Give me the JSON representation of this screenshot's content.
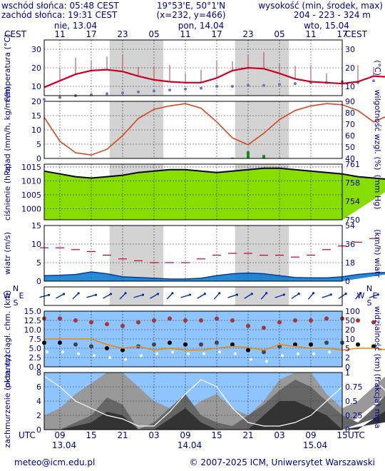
{
  "header": {
    "sunrise": "wschód słońca: 05:48 CEST",
    "sunset": "zachód słońca: 19:31 CEST",
    "coords": "19°53'E, 50°1'N",
    "grid": "(x=232, y=466)",
    "elev_title": "wysokość (min, środek, max)",
    "elev_values": "204 - 223 - 324 m"
  },
  "timeline": {
    "top_zone": "CEST",
    "bottom_zone": "UTC",
    "day_labels": [
      {
        "label": "nie, 13.04",
        "hour": 0
      },
      {
        "label": "pon, 14.04",
        "hour": 24
      },
      {
        "label": "wto, 15.04",
        "hour": 48
      }
    ],
    "top_ticks": [
      "11",
      "17",
      "23",
      "05",
      "11",
      "17",
      "23",
      "05",
      "11",
      "17"
    ],
    "bottom_ticks": [
      "09",
      "15",
      "21",
      "03",
      "09",
      "15",
      "21",
      "03",
      "09",
      "15"
    ],
    "bottom_dates": [
      "13.04",
      "14.04",
      "15.04"
    ],
    "night_bands_utc_h": [
      [
        18.5,
        28.8
      ],
      [
        42.5,
        52.8
      ]
    ]
  },
  "footer": {
    "email": "meteo@icm.edu.pl",
    "copyright": "© 2007-2025 ICM, Uniwersytet Warszawski"
  },
  "chart_data": [
    {
      "type": "line",
      "name": "temperature",
      "ylabel": "temperatura (°C)",
      "ylabel_right": "(°C)",
      "yticks": [
        "10",
        "20",
        "30"
      ],
      "ylim": [
        5,
        35
      ],
      "x_start_utc": "2025-04-13T06:00",
      "x_step_h": 3,
      "series": [
        {
          "values": [
            9.5,
            13,
            16.5,
            18.5,
            19,
            18,
            15.5,
            13.5,
            12.5,
            12,
            12,
            14.5,
            18.5,
            20,
            19.5,
            17,
            14,
            12.5,
            12,
            11.5,
            12.5,
            15.5,
            15,
            14.5
          ]
        },
        {
          "values": [
            1,
            2,
            3,
            3.5,
            4,
            4.5,
            5,
            5.5,
            6,
            6.5,
            7,
            8,
            8,
            8.5,
            8.5,
            9,
            9.5,
            10,
            10,
            10.5,
            10,
            11,
            11.5,
            12
          ]
        }
      ]
    },
    {
      "type": "line",
      "name": "precipitation-humidity",
      "ylabel": "opad (mm/h, kg/m²/h)",
      "ylabel_right": "wilgotność wzgl. (%)",
      "yticks": [
        "0",
        "5",
        "10",
        "15",
        "20"
      ],
      "yticks_right": [
        "40",
        "50",
        "60",
        "70",
        "80",
        "90"
      ],
      "ylim": [
        0,
        20
      ],
      "ylim_right": [
        40,
        90
      ],
      "x_start_utc": "2025-04-13T06:00",
      "x_step_h": 3,
      "series": [
        {
          "values": [
            76,
            55,
            45,
            43,
            48,
            60,
            75,
            83,
            86,
            88,
            84,
            72,
            58,
            52,
            62,
            74,
            82,
            86,
            88,
            87,
            82,
            72,
            78,
            88
          ]
        },
        {
          "values": [
            0,
            0,
            0,
            0,
            0,
            0,
            0,
            0,
            0,
            0,
            0,
            0,
            0.3,
            2.5,
            1.2,
            0.2,
            0,
            0,
            0,
            0,
            0,
            0,
            0.6,
            0.3
          ]
        }
      ]
    },
    {
      "type": "area",
      "name": "pressure",
      "ylabel": "ciśnienie (hPa)",
      "ylabel_right": "(mm Hg)",
      "yticks": [
        "1000",
        "1005",
        "1010",
        "1015"
      ],
      "yticks_right": [
        "750",
        "754",
        "758",
        "761"
      ],
      "ylim": [
        996,
        1016
      ],
      "x_start_utc": "2025-04-13T06:00",
      "x_step_h": 3,
      "values": [
        1013.5,
        1012.5,
        1011.5,
        1011,
        1011.5,
        1012,
        1013,
        1013.5,
        1014,
        1014,
        1013.5,
        1013,
        1013.5,
        1014,
        1014.5,
        1014.5,
        1014,
        1013.5,
        1013,
        1012.5,
        1011.5,
        1011,
        1010.5,
        1010.5
      ]
    },
    {
      "type": "area",
      "name": "wind",
      "ylabel": "wiatr (m/s)",
      "ylabel_right": "(km/h) wiatr",
      "yticks": [
        "0",
        "5",
        "10",
        "15"
      ],
      "yticks_right": [
        "0",
        "18",
        "36",
        "54"
      ],
      "ylim": [
        0,
        15
      ],
      "x_start_utc": "2025-04-13T06:00",
      "x_step_h": 3,
      "series": [
        {
          "values": [
            1.5,
            1.6,
            1.8,
            2.5,
            2,
            1.2,
            1,
            0.8,
            0.6,
            0.6,
            0.8,
            1.5,
            2,
            2.2,
            2,
            1.5,
            1,
            0.9,
            0.9,
            1.2,
            1.8,
            2.2,
            2.4,
            2.6
          ]
        },
        {
          "values": [
            9,
            9,
            8.5,
            8,
            7,
            6,
            5.5,
            5,
            5,
            5,
            6,
            7,
            7.5,
            7.5,
            7,
            7,
            6.5,
            7,
            8.5,
            9.5,
            10.5,
            11.5,
            10,
            9.5
          ]
        }
      ]
    },
    {
      "type": "scatter",
      "name": "wind-direction",
      "compass_labels": [
        "N",
        "W",
        "E",
        "S"
      ]
    },
    {
      "type": "scatter",
      "name": "cloud-visibility",
      "ylabel": "pion. rozciągł. chm. (km)",
      "ylabel_right": "widzialność (km)",
      "yticks": [
        "0.0",
        "2.5",
        "5.0",
        "7.5",
        "10.0",
        "12.5",
        "15.0"
      ],
      "yticks_right": [
        "0",
        "2",
        "5",
        "10",
        "20",
        "50",
        "100"
      ],
      "ylim": [
        0,
        15
      ],
      "x_start_utc": "2025-04-13T06:00",
      "x_step_h": 3,
      "series": [
        {
          "values": [
            8.5,
            8.5,
            8,
            7.5,
            7,
            6.5,
            7.5,
            8,
            8.5,
            8,
            8,
            8.5,
            8,
            6.5,
            6,
            7.5,
            8,
            8,
            8.5,
            8.5,
            8,
            7.5,
            6.5,
            8
          ]
        },
        {
          "values": [
            7.5,
            7.5,
            7.5,
            7.5,
            6,
            5,
            5.5,
            4.5,
            5,
            4.5,
            4.5,
            5,
            5.5,
            5.2,
            4.5,
            6,
            5.5,
            5,
            5,
            4.5,
            5,
            5,
            4.5,
            5.5
          ]
        }
      ]
    },
    {
      "type": "area",
      "name": "cloudiness-fog",
      "ylabel": "zachmurzenie (oktanty)",
      "ylabel_right": "(frakcja) mgła",
      "yticks": [
        "0",
        "2",
        "4",
        "6",
        "8"
      ],
      "yticks_right": [
        "0",
        "0.25",
        "0.5",
        "0.75",
        "1"
      ],
      "ylim": [
        0,
        8
      ],
      "x_start_utc": "2025-04-13T06:00",
      "x_step_h": 3,
      "series": [
        {
          "values": [
            2,
            3,
            5,
            6.5,
            8,
            8,
            6,
            4,
            3,
            2.5,
            4,
            5,
            3,
            2,
            4,
            7,
            8,
            8,
            5,
            3,
            4,
            6,
            8,
            7
          ]
        },
        {
          "values": [
            0,
            0,
            1,
            2,
            4.5,
            3.5,
            0,
            1,
            3,
            5,
            2,
            1,
            0.5,
            2,
            3.5,
            5.5,
            7,
            6,
            4,
            2,
            1,
            3,
            5.5,
            3
          ]
        },
        {
          "values": [
            0,
            0,
            0.5,
            1,
            2.5,
            2,
            0,
            0,
            1.5,
            3,
            1,
            0,
            0,
            0,
            2,
            4,
            4,
            3,
            2,
            0,
            0,
            1.5,
            3,
            1.5
          ]
        },
        {
          "values": [
            7.5,
            6,
            4,
            3,
            2,
            1.5,
            0.5,
            0.5,
            2.5,
            5,
            7,
            6,
            3,
            1,
            0.5,
            0.5,
            1,
            2,
            4,
            6,
            7.5,
            7,
            5,
            3
          ]
        }
      ]
    }
  ],
  "colors": {
    "night": "#d3d3d3",
    "panel_bg": "#ffffff",
    "temp_line": "#cc0022",
    "temp_dew": "#7070d0",
    "humidity_line": "#d04820",
    "precip": "#109010",
    "pressure_fill": "#88dd00",
    "wind_fill": "#0077cc",
    "wind_gust": "#cc0022",
    "wind_arrow": "#0033aa",
    "vis_line": "#ee8800",
    "cloud_panel_bg": "#8ec5ff",
    "cloud_high": "#999999",
    "cloud_mid": "#666666",
    "cloud_low": "#333333",
    "fog_line": "#ffffff",
    "axis_text": "#00008b"
  }
}
